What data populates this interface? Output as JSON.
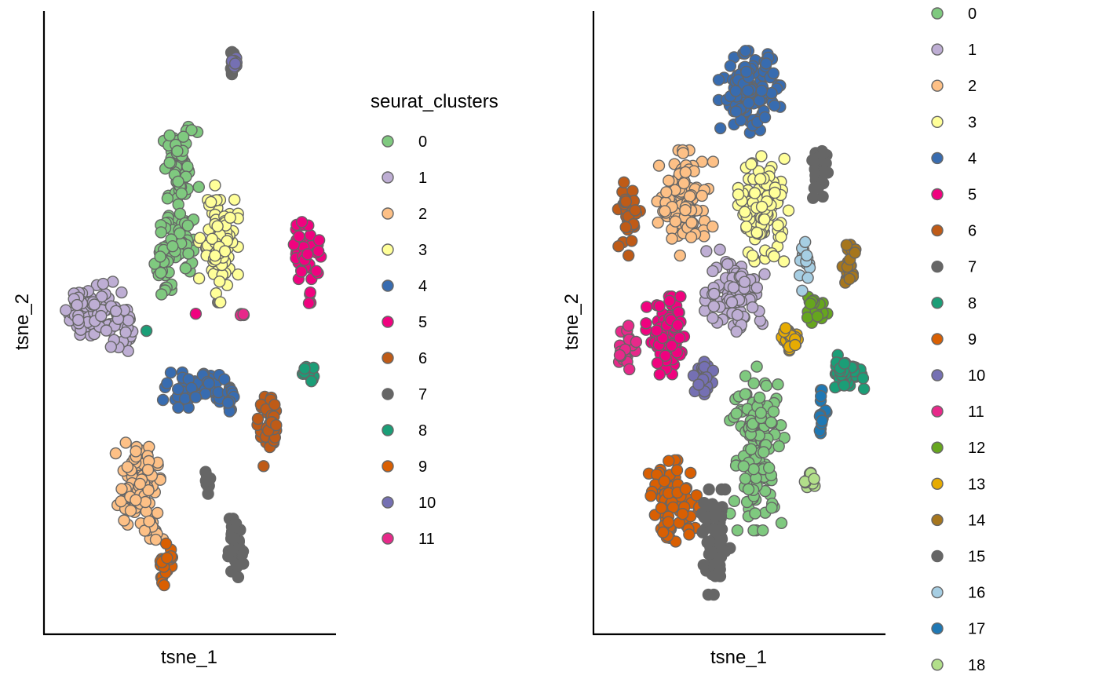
{
  "chart_data": [
    {
      "type": "scatter",
      "xlabel": "tsne_1",
      "ylabel": "tsne_2",
      "xticks": "none",
      "yticks": "none",
      "grid": false,
      "legend": {
        "title": "seurat_clusters",
        "placement": "right",
        "entries": [
          "0",
          "1",
          "2",
          "3",
          "4",
          "5",
          "6",
          "7",
          "8",
          "9",
          "10",
          "11"
        ]
      },
      "series": [
        {
          "label": "0",
          "color": "#7fc97f",
          "clusters": [
            {
              "cx": 0.46,
              "cy": 0.76,
              "rx": 0.07,
              "ry": 0.07,
              "n": 60
            },
            {
              "cx": 0.46,
              "cy": 0.64,
              "rx": 0.05,
              "ry": 0.06,
              "n": 45
            },
            {
              "cx": 0.41,
              "cy": 0.6,
              "rx": 0.04,
              "ry": 0.07,
              "n": 35
            }
          ]
        },
        {
          "label": "1",
          "color": "#beaed4",
          "clusters": [
            {
              "cx": 0.15,
              "cy": 0.52,
              "rx": 0.11,
              "ry": 0.05,
              "n": 80
            },
            {
              "cx": 0.24,
              "cy": 0.49,
              "rx": 0.05,
              "ry": 0.05,
              "n": 30
            }
          ]
        },
        {
          "label": "2",
          "color": "#fdc086",
          "clusters": [
            {
              "cx": 0.31,
              "cy": 0.22,
              "rx": 0.08,
              "ry": 0.07,
              "n": 90
            },
            {
              "cx": 0.36,
              "cy": 0.14,
              "rx": 0.04,
              "ry": 0.03,
              "n": 15
            }
          ]
        },
        {
          "label": "3",
          "color": "#ffff99",
          "clusters": [
            {
              "cx": 0.6,
              "cy": 0.63,
              "rx": 0.07,
              "ry": 0.1,
              "n": 90
            }
          ]
        },
        {
          "label": "4",
          "color": "#386cb0",
          "clusters": [
            {
              "cx": 0.52,
              "cy": 0.38,
              "rx": 0.12,
              "ry": 0.03,
              "n": 70
            },
            {
              "cx": 0.64,
              "cy": 0.36,
              "rx": 0.02,
              "ry": 0.03,
              "n": 10
            }
          ]
        },
        {
          "label": "5",
          "color": "#f0027f",
          "clusters": [
            {
              "cx": 0.92,
              "cy": 0.62,
              "rx": 0.06,
              "ry": 0.05,
              "n": 45
            },
            {
              "cx": 0.93,
              "cy": 0.54,
              "rx": 0.01,
              "ry": 0.02,
              "n": 4
            },
            {
              "cx": 0.69,
              "cy": 0.51,
              "rx": 0.02,
              "ry": 0.005,
              "n": 3
            },
            {
              "cx": 0.52,
              "cy": 0.51,
              "rx": 0.005,
              "ry": 0.005,
              "n": 1
            }
          ]
        },
        {
          "label": "6",
          "color": "#bf5b17",
          "clusters": [
            {
              "cx": 0.78,
              "cy": 0.31,
              "rx": 0.04,
              "ry": 0.06,
              "n": 40
            }
          ]
        },
        {
          "label": "7",
          "color": "#666666",
          "clusters": [
            {
              "cx": 0.66,
              "cy": 0.11,
              "rx": 0.03,
              "ry": 0.05,
              "n": 45
            },
            {
              "cx": 0.56,
              "cy": 0.22,
              "rx": 0.015,
              "ry": 0.02,
              "n": 10
            },
            {
              "cx": 0.65,
              "cy": 0.94,
              "rx": 0.01,
              "ry": 0.02,
              "n": 12
            }
          ]
        },
        {
          "label": "8",
          "color": "#1b9e77",
          "clusters": [
            {
              "cx": 0.92,
              "cy": 0.41,
              "rx": 0.03,
              "ry": 0.015,
              "n": 14
            },
            {
              "cx": 0.34,
              "cy": 0.48,
              "rx": 0.005,
              "ry": 0.005,
              "n": 1
            }
          ]
        },
        {
          "label": "9",
          "color": "#d95f02",
          "clusters": [
            {
              "cx": 0.41,
              "cy": 0.08,
              "rx": 0.03,
              "ry": 0.04,
              "n": 25
            }
          ]
        },
        {
          "label": "10",
          "color": "#7570b3",
          "clusters": [
            {
              "cx": 0.66,
              "cy": 0.94,
              "rx": 0.012,
              "ry": 0.025,
              "n": 10
            }
          ]
        },
        {
          "label": "11",
          "color": "#e7298a",
          "clusters": [
            {
              "cx": 0.68,
              "cy": 0.51,
              "rx": 0.01,
              "ry": 0.005,
              "n": 2
            }
          ]
        }
      ]
    },
    {
      "type": "scatter",
      "xlabel": "tsne_1",
      "ylabel": "tsne_2",
      "xticks": "none",
      "yticks": "none",
      "grid": false,
      "legend": {
        "title": "",
        "placement": "right",
        "entries": [
          "0",
          "1",
          "2",
          "3",
          "4",
          "5",
          "6",
          "7",
          "8",
          "9",
          "10",
          "11",
          "12",
          "13",
          "14",
          "15",
          "16",
          "17",
          "18"
        ]
      },
      "series": [
        {
          "label": "0",
          "color": "#7fc97f",
          "clusters": [
            {
              "cx": 0.56,
              "cy": 0.28,
              "rx": 0.1,
              "ry": 0.14,
              "n": 130
            }
          ]
        },
        {
          "label": "1",
          "color": "#beaed4",
          "clusters": [
            {
              "cx": 0.48,
              "cy": 0.55,
              "rx": 0.11,
              "ry": 0.07,
              "n": 90
            }
          ]
        },
        {
          "label": "2",
          "color": "#fdc086",
          "clusters": [
            {
              "cx": 0.3,
              "cy": 0.7,
              "rx": 0.1,
              "ry": 0.09,
              "n": 110
            }
          ]
        },
        {
          "label": "3",
          "color": "#ffff99",
          "clusters": [
            {
              "cx": 0.58,
              "cy": 0.69,
              "rx": 0.09,
              "ry": 0.09,
              "n": 100
            }
          ]
        },
        {
          "label": "4",
          "color": "#386cb0",
          "clusters": [
            {
              "cx": 0.53,
              "cy": 0.89,
              "rx": 0.11,
              "ry": 0.07,
              "n": 110
            }
          ]
        },
        {
          "label": "5",
          "color": "#f0027f",
          "clusters": [
            {
              "cx": 0.24,
              "cy": 0.47,
              "rx": 0.08,
              "ry": 0.07,
              "n": 80
            }
          ]
        },
        {
          "label": "6",
          "color": "#bf5b17",
          "clusters": [
            {
              "cx": 0.1,
              "cy": 0.68,
              "rx": 0.04,
              "ry": 0.07,
              "n": 30
            }
          ]
        },
        {
          "label": "7",
          "color": "#666666",
          "clusters": [
            {
              "cx": 0.78,
              "cy": 0.75,
              "rx": 0.03,
              "ry": 0.05,
              "n": 40
            }
          ]
        },
        {
          "label": "8",
          "color": "#1b9e77",
          "clusters": [
            {
              "cx": 0.87,
              "cy": 0.41,
              "rx": 0.07,
              "ry": 0.03,
              "n": 40
            }
          ]
        },
        {
          "label": "9",
          "color": "#d95f02",
          "clusters": [
            {
              "cx": 0.26,
              "cy": 0.19,
              "rx": 0.09,
              "ry": 0.07,
              "n": 80
            }
          ]
        },
        {
          "label": "10",
          "color": "#7570b3",
          "clusters": [
            {
              "cx": 0.37,
              "cy": 0.4,
              "rx": 0.04,
              "ry": 0.04,
              "n": 25
            }
          ]
        },
        {
          "label": "11",
          "color": "#e7298a",
          "clusters": [
            {
              "cx": 0.09,
              "cy": 0.45,
              "rx": 0.04,
              "ry": 0.04,
              "n": 25
            }
          ]
        },
        {
          "label": "12",
          "color": "#66a61e",
          "clusters": [
            {
              "cx": 0.77,
              "cy": 0.52,
              "rx": 0.04,
              "ry": 0.035,
              "n": 25
            }
          ]
        },
        {
          "label": "13",
          "color": "#e6ab02",
          "clusters": [
            {
              "cx": 0.67,
              "cy": 0.47,
              "rx": 0.04,
              "ry": 0.025,
              "n": 25
            }
          ]
        },
        {
          "label": "14",
          "color": "#a6761d",
          "clusters": [
            {
              "cx": 0.89,
              "cy": 0.59,
              "rx": 0.03,
              "ry": 0.04,
              "n": 20
            }
          ]
        },
        {
          "label": "15",
          "color": "#666666",
          "clusters": [
            {
              "cx": 0.41,
              "cy": 0.12,
              "rx": 0.05,
              "ry": 0.09,
              "n": 70
            }
          ]
        },
        {
          "label": "16",
          "color": "#a6cee3",
          "clusters": [
            {
              "cx": 0.73,
              "cy": 0.6,
              "rx": 0.03,
              "ry": 0.05,
              "n": 18
            }
          ]
        },
        {
          "label": "17",
          "color": "#1f78b4",
          "clusters": [
            {
              "cx": 0.79,
              "cy": 0.34,
              "rx": 0.02,
              "ry": 0.04,
              "n": 15
            }
          ]
        },
        {
          "label": "18",
          "color": "#b2df8a",
          "clusters": [
            {
              "cx": 0.74,
              "cy": 0.23,
              "rx": 0.03,
              "ry": 0.02,
              "n": 10
            }
          ]
        }
      ]
    }
  ]
}
